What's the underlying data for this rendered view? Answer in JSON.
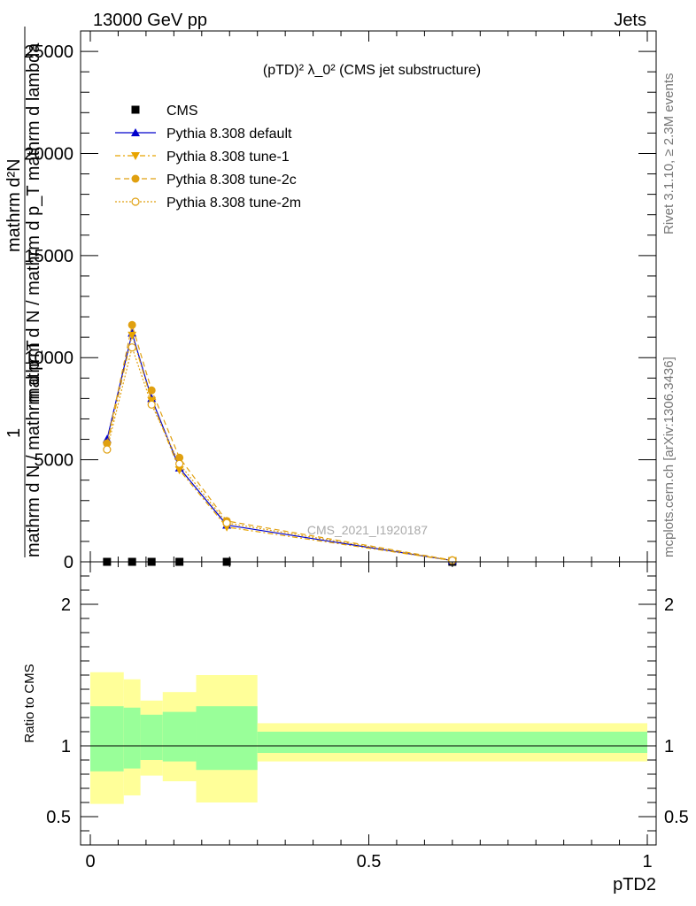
{
  "header": {
    "left": "13000 GeV pp",
    "right": "Jets"
  },
  "side_labels": {
    "rivet": "Rivet 3.1.10, ≥ 2.3M events",
    "mcplots": "mcplots.cern.ch [arXiv:1306.3436]"
  },
  "chart_data": [
    {
      "type": "line",
      "title": "(pTD)² λ_0² (CMS jet substructure)",
      "ylabel_main": "mathrm d N / mathrm d p_T mathrm d lambda",
      "ylabel_line1": "1",
      "ylabel_line2": "mathrm d N / mathrm d p_T",
      "ylabel_num": "mathrm d²N",
      "xlabel": "pTD2",
      "watermark": "CMS_2021_I1920187",
      "xlim": [
        0,
        1
      ],
      "ylim": [
        0,
        26000
      ],
      "x_ticks": [
        0,
        0.5,
        1
      ],
      "x_tick_labels": [
        "0",
        "0.5",
        "1"
      ],
      "y_ticks": [
        0,
        5000,
        10000,
        15000,
        20000,
        25000
      ],
      "y_tick_labels": [
        "0",
        "5000",
        "10000",
        "15000",
        "20000",
        "25000"
      ],
      "x": [
        0.03,
        0.075,
        0.11,
        0.16,
        0.245,
        0.65
      ],
      "series": [
        {
          "name": "CMS",
          "kind": "data",
          "color": "#000000",
          "marker": "square",
          "values": [
            0,
            0,
            0,
            0,
            0,
            0
          ]
        },
        {
          "name": "Pythia 8.308 default",
          "color": "#0000cc",
          "marker": "triangle",
          "dash": "",
          "values": [
            6000,
            11200,
            8000,
            4600,
            1800,
            60
          ]
        },
        {
          "name": "Pythia 8.308 tune-1",
          "color": "#e8a400",
          "marker": "triangle-down",
          "dash": "6,3,2,3",
          "values": [
            5700,
            11100,
            7900,
            4500,
            1700,
            60
          ]
        },
        {
          "name": "Pythia 8.308 tune-2c",
          "color": "#e0a010",
          "marker": "circle",
          "dash": "6,4",
          "values": [
            5800,
            11600,
            8400,
            5100,
            2000,
            80
          ]
        },
        {
          "name": "Pythia 8.308 tune-2m",
          "color": "#e0a010",
          "marker": "open-circle",
          "dash": "2,2",
          "values": [
            5500,
            10500,
            7700,
            4800,
            1900,
            70
          ]
        }
      ]
    },
    {
      "type": "area",
      "ylabel": "Ratio to CMS",
      "xlim": [
        0,
        1
      ],
      "ylim": [
        0.3,
        2.3
      ],
      "y_ticks": [
        0.5,
        1,
        2
      ],
      "y_tick_labels": [
        "0.5",
        "1",
        "2"
      ],
      "bins": [
        {
          "x0": 0.0,
          "x1": 0.06,
          "inner": [
            0.82,
            1.28
          ],
          "outer": [
            0.59,
            1.52
          ]
        },
        {
          "x0": 0.06,
          "x1": 0.09,
          "inner": [
            0.84,
            1.27
          ],
          "outer": [
            0.65,
            1.47
          ]
        },
        {
          "x0": 0.09,
          "x1": 0.13,
          "inner": [
            0.9,
            1.22
          ],
          "outer": [
            0.79,
            1.32
          ]
        },
        {
          "x0": 0.13,
          "x1": 0.19,
          "inner": [
            0.89,
            1.24
          ],
          "outer": [
            0.75,
            1.38
          ]
        },
        {
          "x0": 0.19,
          "x1": 0.3,
          "inner": [
            0.83,
            1.28
          ],
          "outer": [
            0.6,
            1.5
          ]
        },
        {
          "x0": 0.3,
          "x1": 1.0,
          "inner": [
            0.95,
            1.1
          ],
          "outer": [
            0.89,
            1.16
          ]
        }
      ],
      "inner_color": "#99ff99",
      "outer_color": "#ffff99",
      "reference_line": 1
    }
  ]
}
